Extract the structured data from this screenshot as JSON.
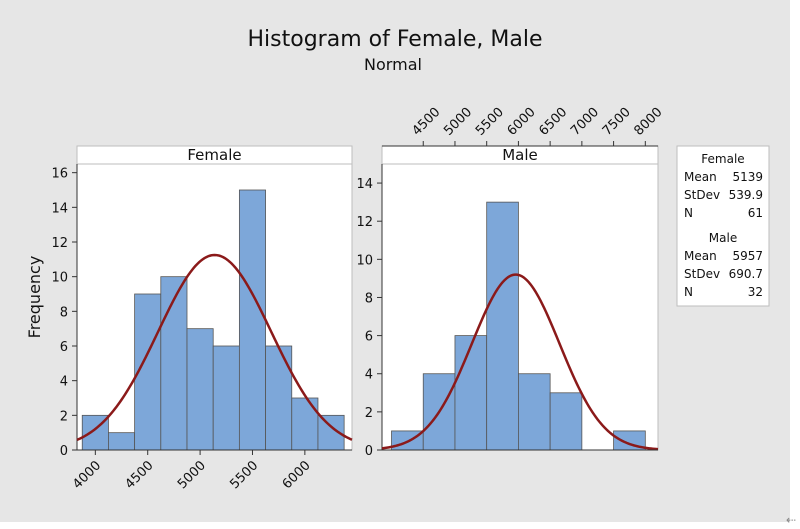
{
  "chart_data": {
    "type": "bar",
    "title": "Histogram of Female, Male",
    "subtitle": "Normal",
    "ylabel": "Frequency",
    "colors": {
      "bar": "#7da7d9",
      "bar_edge": "#555555",
      "curve": "#8b1a1a",
      "panel_bg": "#ffffff",
      "strip_bg": "#ffffff",
      "frame_bg": "#e6e6e6"
    },
    "panels": [
      {
        "name": "Female",
        "bins_start": 3875,
        "bin_width": 250,
        "values": [
          2,
          1,
          9,
          10,
          7,
          6,
          15,
          6,
          3,
          2
        ],
        "xlim": [
          3825,
          6450
        ],
        "xticks": [
          4000,
          4500,
          5000,
          5500,
          6000
        ],
        "ylim": [
          0,
          16.5
        ],
        "yticks": [
          0,
          2,
          4,
          6,
          8,
          10,
          12,
          14,
          16
        ],
        "curve": {
          "mean": 5139,
          "stdev": 539.9,
          "peak": 11.25
        }
      },
      {
        "name": "Male",
        "bins_start": 4000,
        "bin_width": 500,
        "values": [
          1,
          4,
          6,
          13,
          4,
          3,
          0,
          1
        ],
        "xlim": [
          3850,
          8200
        ],
        "xticks": [
          4500,
          5000,
          5500,
          6000,
          6500,
          7000,
          7500,
          8000
        ],
        "ylim": [
          0,
          15
        ],
        "yticks": [
          0,
          2,
          4,
          6,
          8,
          10,
          12,
          14
        ],
        "curve": {
          "mean": 5957,
          "stdev": 690.7,
          "peak": 9.2
        }
      }
    ],
    "legend": [
      {
        "title": "Female",
        "rows": [
          {
            "label": "Mean",
            "value": "5139"
          },
          {
            "label": "StDev",
            "value": "539.9"
          },
          {
            "label": "N",
            "value": "61"
          }
        ]
      },
      {
        "title": "Male",
        "rows": [
          {
            "label": "Mean",
            "value": "5957"
          },
          {
            "label": "StDev",
            "value": "690.7"
          },
          {
            "label": "N",
            "value": "32"
          }
        ]
      }
    ],
    "legend_position": "right"
  },
  "corner_glyph": "⇠"
}
